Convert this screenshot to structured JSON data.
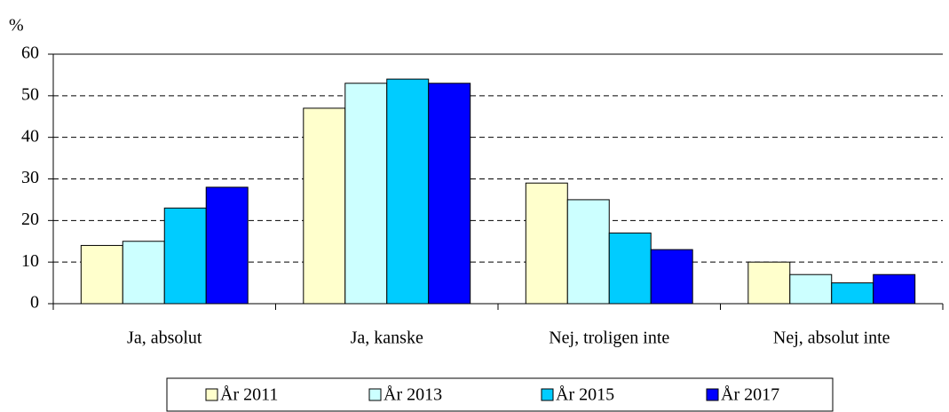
{
  "chart_data": {
    "type": "bar",
    "y_label": "%",
    "categories": [
      "Ja, absolut",
      "Ja, kanske",
      "Nej, troligen inte",
      "Nej, absolut inte"
    ],
    "series": [
      {
        "name": "År 2011",
        "color": "#ffffcc",
        "values": [
          14,
          47,
          29,
          10
        ]
      },
      {
        "name": "År 2013",
        "color": "#ccffff",
        "values": [
          15,
          53,
          25,
          7
        ]
      },
      {
        "name": "År 2015",
        "color": "#00ccff",
        "values": [
          23,
          54,
          17,
          5
        ]
      },
      {
        "name": "År 2017",
        "color": "#0000ff",
        "values": [
          28,
          53,
          13,
          7
        ]
      }
    ],
    "ylim": [
      0,
      60
    ],
    "yticks": [
      0,
      10,
      20,
      30,
      40,
      50,
      60
    ],
    "grid": true,
    "legend": "bottom"
  }
}
